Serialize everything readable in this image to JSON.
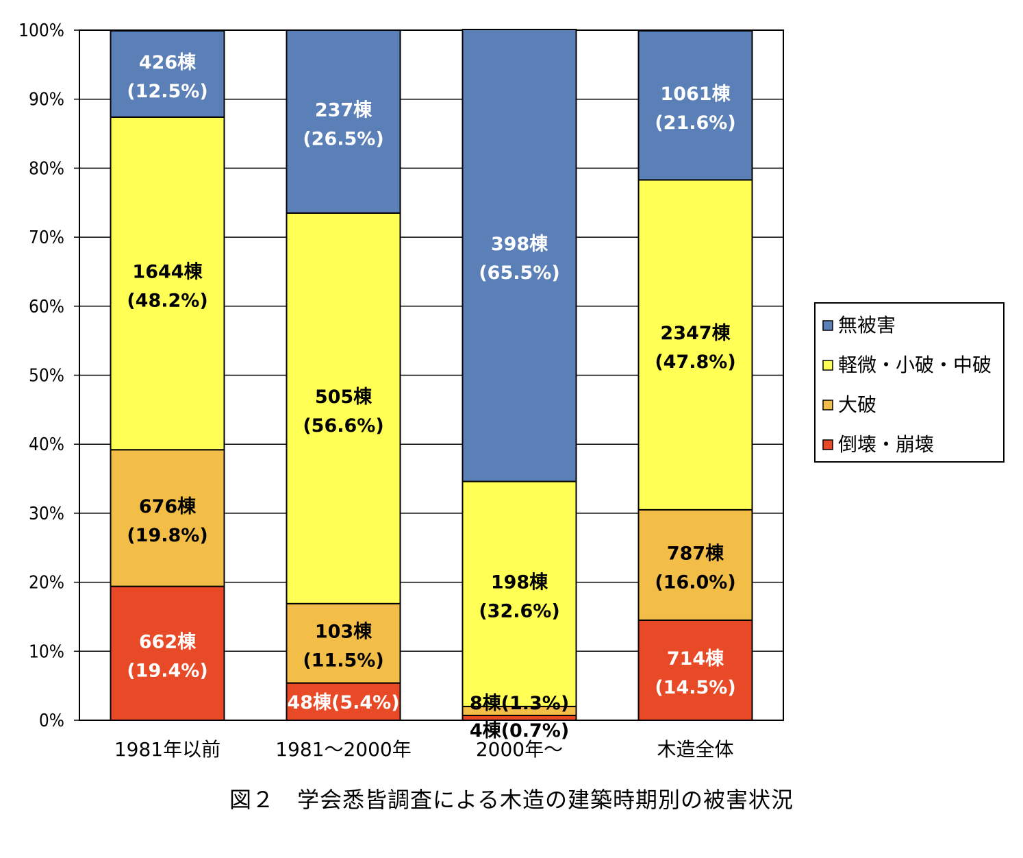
{
  "caption": "図２　学会悉皆調査による木造の建築時期別の被害状況",
  "chart_data": {
    "type": "bar",
    "stacked": true,
    "percent": true,
    "categories": [
      "1981年以前",
      "1981～2000年",
      "2000年～",
      "木造全体"
    ],
    "y_ticks": [
      "0%",
      "10%",
      "20%",
      "30%",
      "40%",
      "50%",
      "60%",
      "70%",
      "80%",
      "90%",
      "100%"
    ],
    "ylim": [
      0,
      100
    ],
    "grid": true,
    "legend_position": "right",
    "series": [
      {
        "name": "倒壊・崩壊",
        "color": "#E84A27",
        "label_color": "#ffffff",
        "values": [
          19.4,
          5.4,
          0.7,
          14.5
        ],
        "labels": [
          [
            "662棟",
            "(19.4%)"
          ],
          [
            "48棟(5.4%)"
          ],
          [
            "4棟(0.7%)"
          ],
          [
            "714棟",
            "(14.5%)"
          ]
        ]
      },
      {
        "name": "大破",
        "color": "#F2BE47",
        "label_color": "#000000",
        "values": [
          19.8,
          11.5,
          1.3,
          16.0
        ],
        "labels": [
          [
            "676棟",
            "(19.8%)"
          ],
          [
            "103棟",
            "(11.5%)"
          ],
          [
            "8棟(1.3%)"
          ],
          [
            "787棟",
            "(16.0%)"
          ]
        ]
      },
      {
        "name": "軽微・小破・中破",
        "color": "#FFFF55",
        "label_color": "#000000",
        "values": [
          48.2,
          56.6,
          32.6,
          47.8
        ],
        "labels": [
          [
            "1644棟",
            "(48.2%)"
          ],
          [
            "505棟",
            "(56.6%)"
          ],
          [
            "198棟",
            "(32.6%)"
          ],
          [
            "2347棟",
            "(47.8%)"
          ]
        ]
      },
      {
        "name": "無被害",
        "color": "#5B80B8",
        "label_color": "#ffffff",
        "values": [
          12.5,
          26.5,
          65.5,
          21.6
        ],
        "labels": [
          [
            "426棟",
            "(12.5%)"
          ],
          [
            "237棟",
            "(26.5%)"
          ],
          [
            "398棟",
            "(65.5%)"
          ],
          [
            "1061棟",
            "(21.6%)"
          ]
        ]
      }
    ],
    "legend_order": [
      "無被害",
      "軽微・小破・中破",
      "大破",
      "倒壊・崩壊"
    ]
  }
}
